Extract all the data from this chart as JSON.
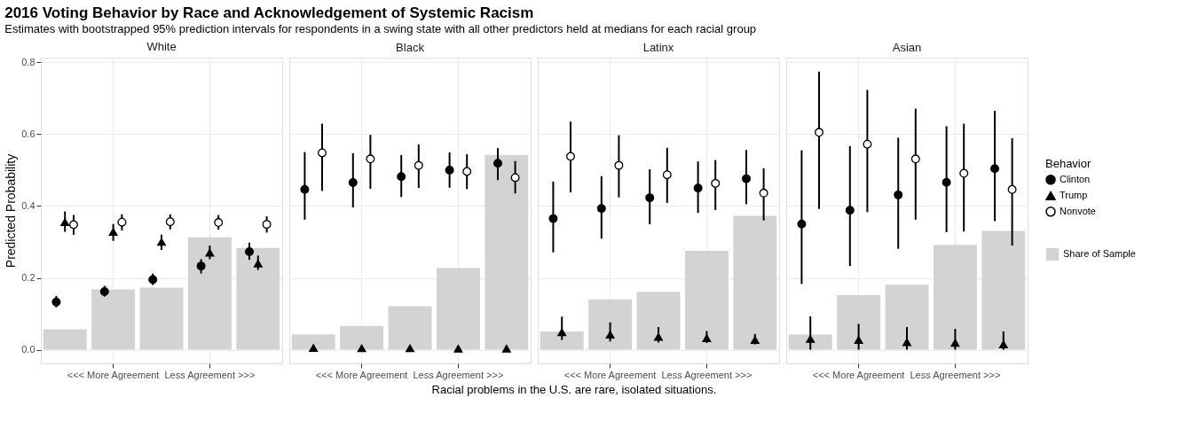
{
  "chart_data": [
    {
      "type": "bar",
      "title": "White",
      "annotations": [
        "2016 Voting Behavior by Race and Acknowledgement of Systemic Racism",
        "Estimates with bootstrapped 95% prediction intervals for respondents in a swing state with all other predictors held at medians for each racial group",
        "Racial problems in the U.S. are rare, isolated situations."
      ],
      "ylabel": "Predicted Probability",
      "categories": [
        null,
        "<<< More Agreement",
        null,
        "Less Agreement >>>",
        null
      ],
      "ylim": [
        -0.038,
        0.813
      ],
      "yticks": [
        {
          "value": 0,
          "label": "0.0"
        },
        0.2,
        0.4,
        0.6,
        0.8
      ],
      "grid": true,
      "series": [
        {
          "color": "#d3d3d3",
          "values": [
            0.057,
            0.168,
            0.173,
            0.313,
            0.283
          ]
        },
        {
          "type": "scatter",
          "marker": "circle",
          "color": "#000000",
          "values": [
            0.133,
            0.162,
            0.195,
            0.233,
            0.273
          ],
          "errors": [
            [
              0.118,
              0.15
            ],
            [
              0.148,
              0.178
            ],
            [
              0.18,
              0.212
            ],
            [
              0.212,
              0.252
            ],
            [
              0.25,
              0.298
            ]
          ]
        },
        {
          "type": "scatter",
          "marker": "triangle",
          "color": "#000000",
          "values": [
            0.355,
            0.328,
            0.3,
            0.27,
            0.24
          ],
          "errors": [
            [
              0.328,
              0.385
            ],
            [
              0.303,
              0.35
            ],
            [
              0.278,
              0.32
            ],
            [
              0.252,
              0.29
            ],
            [
              0.222,
              0.262
            ]
          ]
        },
        {
          "type": "scatter",
          "marker": "circle",
          "color": "#000000",
          "values": [
            0.348,
            0.355,
            0.356,
            0.354,
            0.349
          ],
          "errors": [
            [
              0.32,
              0.375
            ],
            [
              0.332,
              0.377
            ],
            [
              0.335,
              0.377
            ],
            [
              0.334,
              0.375
            ],
            [
              0.326,
              0.371
            ]
          ]
        }
      ]
    },
    {
      "type": "bar",
      "title": "Black",
      "categories": [
        null,
        "<<< More Agreement",
        null,
        "Less Agreement >>>",
        null
      ],
      "ylim": [
        -0.038,
        0.813
      ],
      "yticks": [
        0,
        0.2,
        0.4,
        0.6,
        0.8
      ],
      "grid": true,
      "tick_labels": "x",
      "series": [
        {
          "color": "#d3d3d3",
          "values": [
            0.043,
            0.066,
            0.121,
            0.227,
            0.542
          ]
        },
        {
          "type": "scatter",
          "marker": "circle",
          "color": "#000000",
          "values": [
            0.446,
            0.465,
            0.482,
            0.5,
            0.519
          ],
          "errors": [
            [
              0.362,
              0.55
            ],
            [
              0.396,
              0.547
            ],
            [
              0.425,
              0.542
            ],
            [
              0.451,
              0.549
            ],
            [
              0.472,
              0.561
            ]
          ]
        },
        {
          "type": "scatter",
          "marker": "triangle",
          "color": "#000000",
          "values": [
            0.005,
            0.004,
            0.004,
            0.003,
            0.003
          ]
        },
        {
          "type": "scatter",
          "marker": "circle",
          "color": "#000000",
          "values": [
            0.548,
            0.531,
            0.513,
            0.496,
            0.479
          ],
          "errors": [
            [
              0.442,
              0.629
            ],
            [
              0.448,
              0.598
            ],
            [
              0.45,
              0.571
            ],
            [
              0.447,
              0.544
            ],
            [
              0.435,
              0.525
            ]
          ]
        }
      ]
    },
    {
      "type": "bar",
      "title": "Latinx",
      "categories": [
        null,
        "<<< More Agreement",
        null,
        "Less Agreement >>>",
        null
      ],
      "ylim": [
        -0.038,
        0.813
      ],
      "yticks": [
        0,
        0.2,
        0.4,
        0.6,
        0.8
      ],
      "grid": true,
      "tick_labels": "x",
      "series": [
        {
          "color": "#d3d3d3",
          "values": [
            0.051,
            0.14,
            0.161,
            0.275,
            0.373
          ]
        },
        {
          "type": "scatter",
          "marker": "circle",
          "color": "#000000",
          "values": [
            0.365,
            0.393,
            0.423,
            0.45,
            0.476
          ],
          "errors": [
            [
              0.271,
              0.468
            ],
            [
              0.309,
              0.483
            ],
            [
              0.349,
              0.502
            ],
            [
              0.381,
              0.524
            ],
            [
              0.405,
              0.556
            ]
          ]
        },
        {
          "type": "scatter",
          "marker": "triangle",
          "color": "#000000",
          "values": [
            0.049,
            0.042,
            0.036,
            0.032,
            0.027
          ],
          "errors": [
            [
              0.027,
              0.092
            ],
            [
              0.023,
              0.076
            ],
            [
              0.02,
              0.063
            ],
            [
              0.019,
              0.052
            ],
            [
              0.015,
              0.044
            ]
          ]
        },
        {
          "type": "scatter",
          "marker": "circle",
          "color": "#000000",
          "values": [
            0.538,
            0.513,
            0.487,
            0.463,
            0.436
          ],
          "errors": [
            [
              0.438,
              0.635
            ],
            [
              0.424,
              0.597
            ],
            [
              0.409,
              0.562
            ],
            [
              0.389,
              0.528
            ],
            [
              0.36,
              0.505
            ]
          ]
        }
      ]
    },
    {
      "type": "bar",
      "title": "Asian",
      "categories": [
        null,
        "<<< More Agreement",
        null,
        "Less Agreement >>>",
        null
      ],
      "ylim": [
        -0.038,
        0.813
      ],
      "yticks": [
        0,
        0.2,
        0.4,
        0.6,
        0.8
      ],
      "grid": true,
      "tick_labels": "x",
      "legend": "right",
      "legend_title": "Behavior",
      "series": [
        {
          "name": "Share of Sample",
          "color": "#d3d3d3",
          "values": [
            0.042,
            0.152,
            0.181,
            0.292,
            0.331
          ]
        },
        {
          "name": "Clinton",
          "type": "scatter",
          "marker": "circle",
          "color": "#000000",
          "values": [
            0.35,
            0.388,
            0.431,
            0.466,
            0.504
          ],
          "errors": [
            [
              0.183,
              0.555
            ],
            [
              0.233,
              0.567
            ],
            [
              0.281,
              0.59
            ],
            [
              0.327,
              0.622
            ],
            [
              0.358,
              0.665
            ]
          ]
        },
        {
          "name": "Trump",
          "type": "scatter",
          "marker": "triangle",
          "color": "#000000",
          "values": [
            0.03,
            0.027,
            0.021,
            0.019,
            0.015
          ],
          "errors": [
            [
              0.0,
              0.093
            ],
            [
              0.0,
              0.072
            ],
            [
              0.0,
              0.063
            ],
            [
              0.0,
              0.058
            ],
            [
              0.0,
              0.051
            ]
          ]
        },
        {
          "name": "Nonvote",
          "type": "scatter",
          "marker": "circle",
          "color": "#000000",
          "values": [
            0.605,
            0.572,
            0.531,
            0.491,
            0.446
          ],
          "errors": [
            [
              0.392,
              0.774
            ],
            [
              0.383,
              0.723
            ],
            [
              0.362,
              0.671
            ],
            [
              0.329,
              0.629
            ],
            [
              0.29,
              0.589
            ]
          ]
        }
      ]
    }
  ]
}
